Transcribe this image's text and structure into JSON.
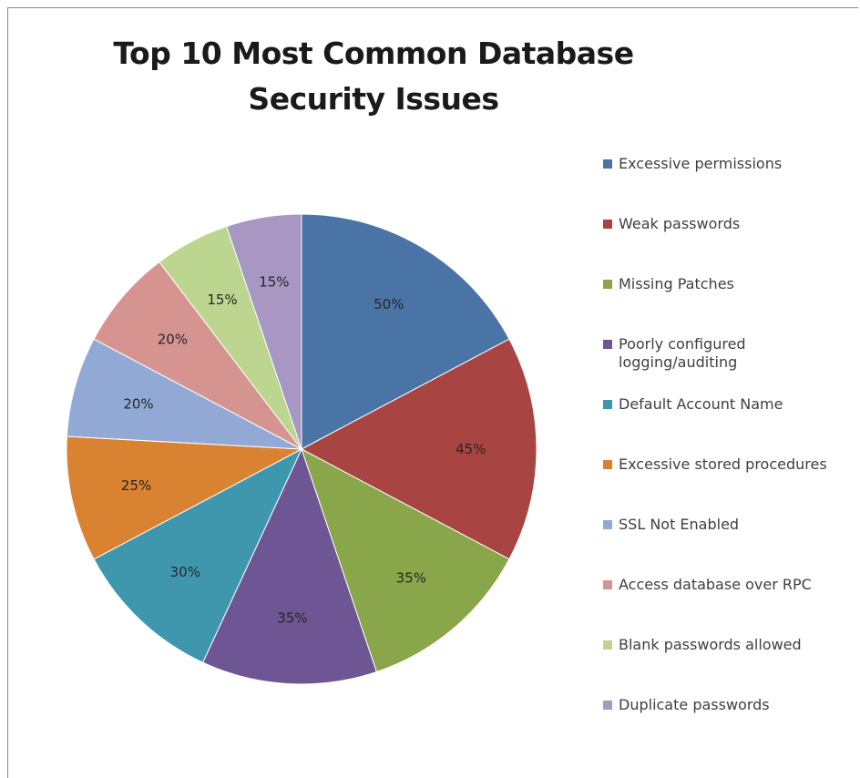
{
  "chart_data": {
    "type": "pie",
    "title": "Top 10 Most Common Database Security Issues",
    "legend_position": "right",
    "categories": [
      "Excessive permissions",
      "Weak passwords",
      "Missing Patches",
      "Poorly configured logging/auditing",
      "Default Account Name",
      "Excessive stored procedures",
      "SSL Not Enabled",
      "Access database over RPC",
      "Blank passwords allowed",
      "Duplicate passwords"
    ],
    "values": [
      50,
      45,
      35,
      35,
      30,
      25,
      20,
      20,
      15,
      15
    ],
    "labels": [
      "50%",
      "45%",
      "35%",
      "35%",
      "30%",
      "25%",
      "20%",
      "20%",
      "15%",
      "15%"
    ],
    "colors": [
      "#4a73a6",
      "#a84442",
      "#8aa64b",
      "#6e5594",
      "#3f97ad",
      "#d98232",
      "#92a9d6",
      "#d69491",
      "#bcd68f",
      "#a797c2"
    ]
  }
}
